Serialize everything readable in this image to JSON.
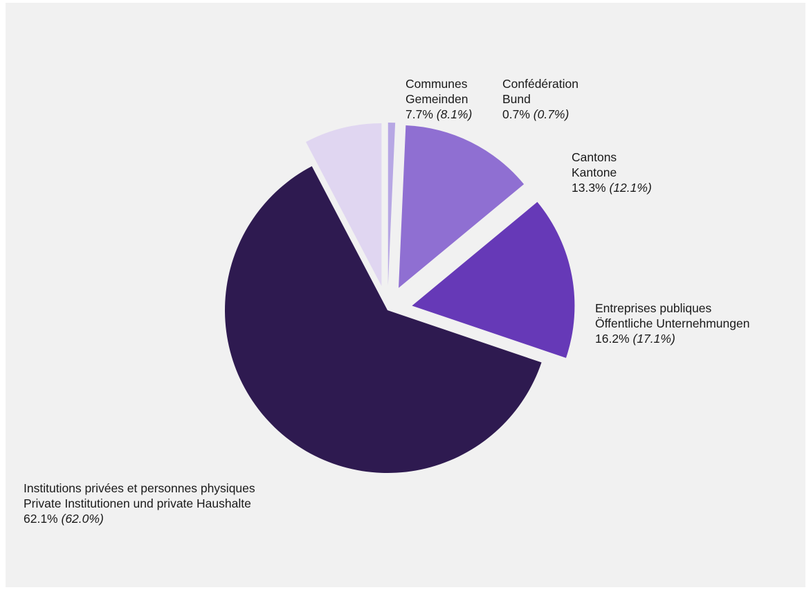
{
  "chart_data": {
    "type": "pie",
    "slices": [
      {
        "line1": "Confédération",
        "line2": "Bund",
        "value": 0.7,
        "value_text": "0.7%",
        "prev_text": "(0.7%)",
        "color": "#b7a7e4"
      },
      {
        "line1": "Cantons",
        "line2": "Kantone",
        "value": 13.3,
        "value_text": "13.3%",
        "prev_text": "(12.1%)",
        "color": "#8f6fd2"
      },
      {
        "line1": "Entreprises publiques",
        "line2": "Öffentliche Unternehmungen",
        "value": 16.2,
        "value_text": "16.2%",
        "prev_text": "(17.1%)",
        "color": "#6639b7"
      },
      {
        "line1": "Institutions privées et personnes physiques",
        "line2": "Private Institutionen und private Haushalte",
        "value": 62.1,
        "value_text": "62.1%",
        "prev_text": "(62.0%)",
        "color": "#2e1a50"
      },
      {
        "line1": "Communes",
        "line2": "Gemeinden",
        "value": 7.7,
        "value_text": "7.7%",
        "prev_text": "(8.1%)",
        "color": "#e0d6f1"
      }
    ]
  }
}
